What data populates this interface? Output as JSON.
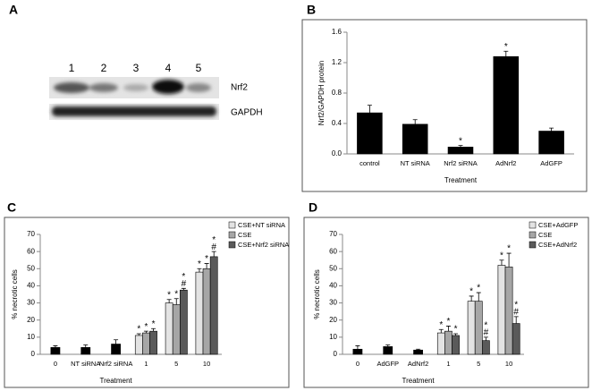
{
  "blot": {
    "label": "A",
    "lane_labels": [
      "1",
      "2",
      "3",
      "4",
      "5"
    ],
    "band_labels": [
      "Nrf2",
      "GAPDH"
    ]
  },
  "chart_data": [
    {
      "type": "bar",
      "label": "B",
      "ylabel": "Nrf2/GAPDH protein",
      "xlabel": "Treatment",
      "categories": [
        "control",
        "NT siRNA",
        "Nrf2 siRNA",
        "AdNrf2",
        "AdGFP"
      ],
      "values": [
        0.54,
        0.39,
        0.09,
        1.28,
        0.3
      ],
      "errors": [
        0.1,
        0.06,
        0.02,
        0.07,
        0.04
      ],
      "significance": [
        null,
        null,
        [
          "*"
        ],
        [
          "*"
        ],
        null
      ],
      "color": "#000000",
      "ylim": [
        0,
        1.6
      ],
      "yticks": [
        {
          "value": 0,
          "label": "0.0"
        },
        0.4,
        0.8,
        1.2,
        1.6
      ],
      "grid": false
    },
    {
      "type": "bar",
      "label": "C",
      "ylabel": "% necrotic cells",
      "xlabel": "Treatment",
      "categories": [
        "0",
        "NT siRNA",
        "Nrf2 siRNA",
        "1",
        "5",
        "10"
      ],
      "values": [
        4,
        4,
        6,
        null,
        null,
        null
      ],
      "errors": [
        1,
        1.5,
        2.5,
        null,
        null,
        null
      ],
      "color": "#000000",
      "series": [
        {
          "name": "CSE+NT siRNA",
          "color": "#e3e3e3",
          "values": [
            null,
            null,
            null,
            11,
            30,
            48
          ],
          "errors": [
            null,
            null,
            null,
            1,
            2,
            2
          ],
          "significance": [
            null,
            null,
            null,
            [
              "*"
            ],
            [
              "*"
            ],
            [
              "*"
            ]
          ]
        },
        {
          "name": "CSE",
          "color": "#a6a6a6",
          "values": [
            null,
            null,
            null,
            12.5,
            29,
            50
          ],
          "errors": [
            null,
            null,
            null,
            1,
            3.5,
            3
          ],
          "significance": [
            null,
            null,
            null,
            [
              "*"
            ],
            [
              "*"
            ],
            [
              "*"
            ]
          ]
        },
        {
          "name": "CSE+Nrf2 siRNA",
          "color": "#5a5a5a",
          "values": [
            null,
            null,
            null,
            13.5,
            37.5,
            57
          ],
          "errors": [
            null,
            null,
            null,
            1.5,
            1,
            3
          ],
          "significance": [
            null,
            null,
            null,
            [
              "*"
            ],
            [
              "*",
              "#"
            ],
            [
              "*",
              "#"
            ]
          ]
        }
      ],
      "legend": "upper right",
      "ylim": [
        0,
        70
      ],
      "yticks": [
        0,
        10,
        20,
        30,
        40,
        50,
        60,
        70
      ],
      "grid": false
    },
    {
      "type": "bar",
      "label": "D",
      "ylabel": "% necrotic cells",
      "xlabel": "Treatment",
      "categories": [
        "0",
        "AdGFP",
        "AdNrf2",
        "1",
        "5",
        "10"
      ],
      "values": [
        3,
        4.5,
        2.5,
        null,
        null,
        null
      ],
      "errors": [
        2,
        1,
        0.5,
        null,
        null,
        null
      ],
      "color": "#000000",
      "series": [
        {
          "name": "CSE+AdGFP",
          "color": "#e3e3e3",
          "values": [
            null,
            null,
            null,
            12.5,
            31,
            52
          ],
          "errors": [
            null,
            null,
            null,
            2,
            3,
            3
          ],
          "significance": [
            null,
            null,
            null,
            [
              "*"
            ],
            [
              "*"
            ],
            [
              "*"
            ]
          ]
        },
        {
          "name": "CSE",
          "color": "#a6a6a6",
          "values": [
            null,
            null,
            null,
            13.5,
            31,
            51
          ],
          "errors": [
            null,
            null,
            null,
            3,
            5,
            8
          ],
          "significance": [
            null,
            null,
            null,
            [
              "*"
            ],
            [
              "*"
            ],
            [
              "*"
            ]
          ]
        },
        {
          "name": "CSE+AdNrf2",
          "color": "#5a5a5a",
          "values": [
            null,
            null,
            null,
            11,
            8,
            18
          ],
          "errors": [
            null,
            null,
            null,
            1,
            2,
            4
          ],
          "significance": [
            null,
            null,
            null,
            [
              "*"
            ],
            [
              "*",
              "#"
            ],
            [
              "*",
              "#"
            ]
          ]
        }
      ],
      "legend": "upper right",
      "ylim": [
        0,
        70
      ],
      "yticks": [
        0,
        10,
        20,
        30,
        40,
        50,
        60,
        70
      ],
      "grid": false
    }
  ]
}
